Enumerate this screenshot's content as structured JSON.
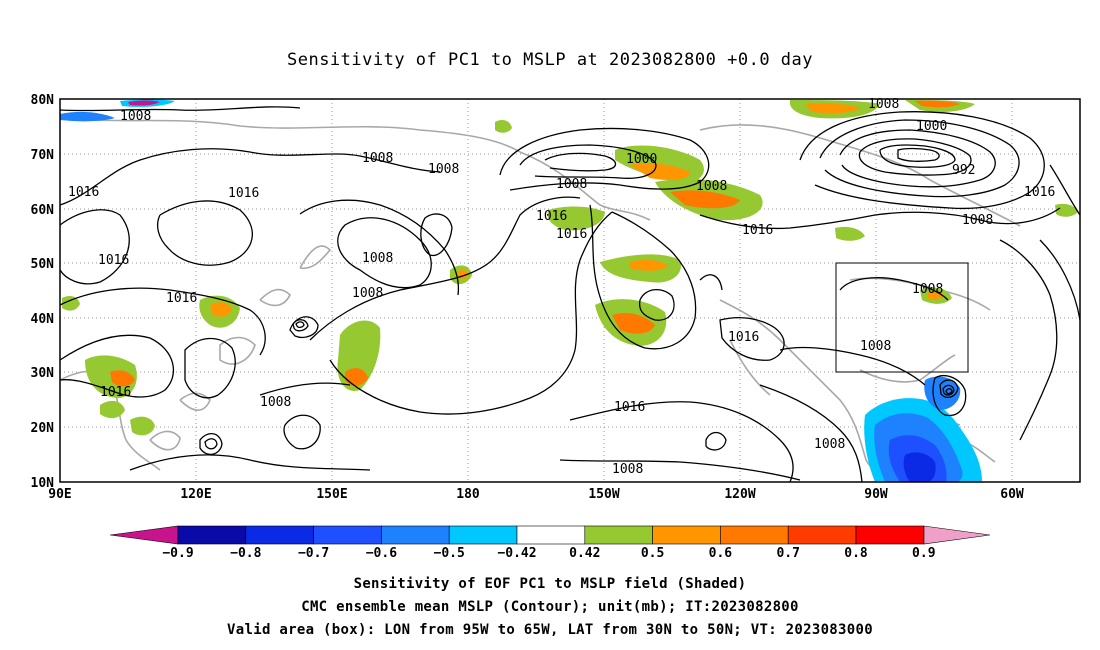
{
  "title": "Sensitivity of PC1 to MSLP at 2023082800 +0.0 day",
  "lat_labels": [
    "80N",
    "70N",
    "60N",
    "50N",
    "40N",
    "30N",
    "20N",
    "10N"
  ],
  "lon_labels": [
    "90E",
    "120E",
    "150E",
    "180",
    "150W",
    "120W",
    "90W",
    "60W"
  ],
  "contour_labels": [
    "1008",
    "1008",
    "1008",
    "1000",
    "1008",
    "1008",
    "1000",
    "992",
    "1016",
    "1016",
    "1016",
    "1008",
    "1016",
    "1016",
    "1008",
    "1016",
    "1016",
    "1008",
    "1016",
    "1008",
    "1008",
    "1016",
    "1008",
    "1016",
    "1008",
    "1016",
    "1008",
    "1008"
  ],
  "colorbar": {
    "labels": [
      "−0.9",
      "−0.8",
      "−0.7",
      "−0.6",
      "−0.5",
      "−0.42",
      "0.42",
      "0.5",
      "0.6",
      "0.7",
      "0.8",
      "0.9"
    ],
    "colors": [
      "#0a0aa8",
      "#0a2ae6",
      "#1e50ff",
      "#1e82ff",
      "#00c8ff",
      "#ffffff",
      "#96c832",
      "#ff9600",
      "#ff7800",
      "#ff3c00",
      "#ff0000"
    ],
    "left_end_color": "#c8148c",
    "right_end_color": "#f0a0c8"
  },
  "caption": [
    "Sensitivity of EOF PC1 to MSLP field (Shaded)",
    "CMC ensemble mean MSLP (Contour); unit(mb); IT:2023082800",
    "Valid area (box): LON from 95W to 65W, LAT from 30N to 50N; VT: 2023083000"
  ]
}
